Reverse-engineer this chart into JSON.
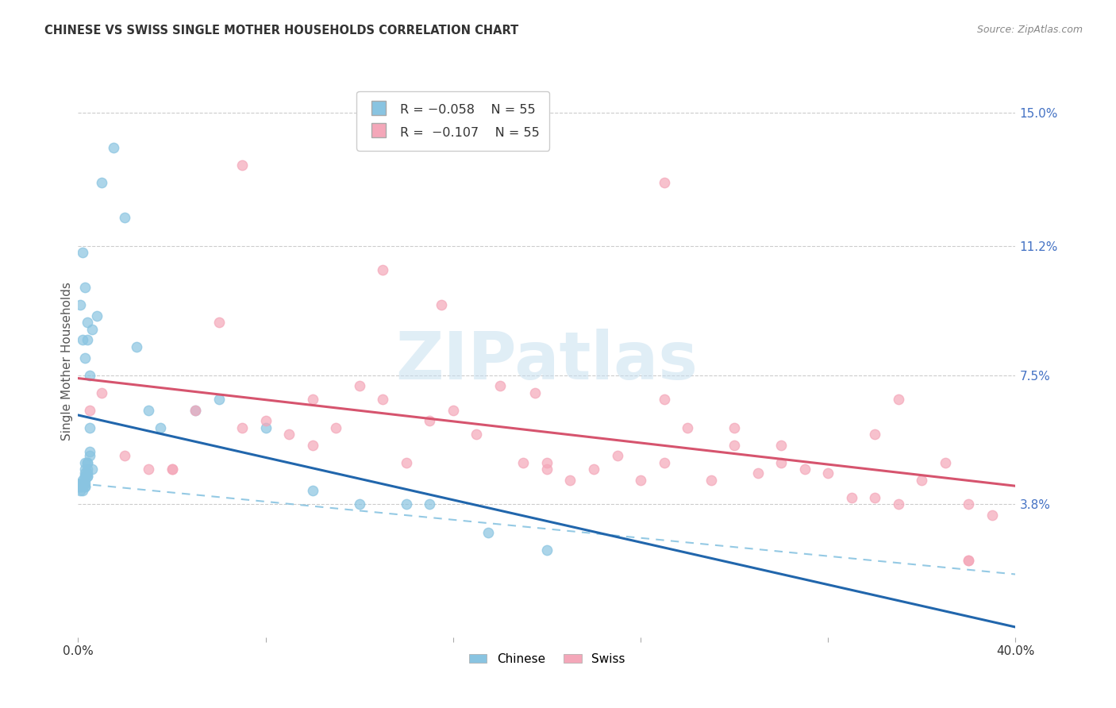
{
  "title": "CHINESE VS SWISS SINGLE MOTHER HOUSEHOLDS CORRELATION CHART",
  "source": "Source: ZipAtlas.com",
  "ylabel": "Single Mother Households",
  "color_chinese": "#89c4e1",
  "color_swiss": "#f4a7b9",
  "color_chinese_line": "#2166ac",
  "color_swiss_line": "#d6546e",
  "color_dashed": "#89c4e1",
  "ytick_vals": [
    0.038,
    0.075,
    0.112,
    0.15
  ],
  "ytick_labels": [
    "3.8%",
    "7.5%",
    "11.2%",
    "15.0%"
  ],
  "xmin": 0.0,
  "xmax": 0.4,
  "ymin": 0.0,
  "ymax": 0.158,
  "chinese_x": [
    0.003,
    0.005,
    0.002,
    0.004,
    0.006,
    0.003,
    0.002,
    0.001,
    0.004,
    0.003,
    0.005,
    0.004,
    0.003,
    0.002,
    0.001,
    0.004,
    0.003,
    0.002,
    0.005,
    0.003,
    0.004,
    0.003,
    0.002,
    0.001,
    0.003,
    0.004,
    0.002,
    0.003,
    0.001,
    0.002,
    0.005,
    0.003,
    0.002,
    0.004,
    0.001,
    0.003,
    0.002,
    0.004,
    0.006,
    0.008,
    0.01,
    0.015,
    0.02,
    0.025,
    0.03,
    0.035,
    0.05,
    0.06,
    0.08,
    0.1,
    0.12,
    0.14,
    0.15,
    0.175,
    0.2
  ],
  "chinese_y": [
    0.05,
    0.06,
    0.045,
    0.047,
    0.048,
    0.043,
    0.042,
    0.044,
    0.046,
    0.043,
    0.052,
    0.05,
    0.048,
    0.044,
    0.042,
    0.046,
    0.044,
    0.043,
    0.053,
    0.045,
    0.05,
    0.047,
    0.044,
    0.043,
    0.046,
    0.048,
    0.044,
    0.046,
    0.043,
    0.044,
    0.075,
    0.08,
    0.085,
    0.09,
    0.095,
    0.1,
    0.11,
    0.085,
    0.088,
    0.092,
    0.13,
    0.14,
    0.12,
    0.083,
    0.065,
    0.06,
    0.065,
    0.068,
    0.06,
    0.042,
    0.038,
    0.038,
    0.038,
    0.03,
    0.025
  ],
  "swiss_x": [
    0.005,
    0.01,
    0.02,
    0.03,
    0.04,
    0.05,
    0.06,
    0.07,
    0.08,
    0.09,
    0.1,
    0.11,
    0.12,
    0.13,
    0.14,
    0.15,
    0.16,
    0.17,
    0.18,
    0.19,
    0.2,
    0.21,
    0.22,
    0.23,
    0.24,
    0.25,
    0.26,
    0.27,
    0.28,
    0.29,
    0.3,
    0.31,
    0.32,
    0.33,
    0.34,
    0.35,
    0.36,
    0.37,
    0.38,
    0.39,
    0.13,
    0.155,
    0.195,
    0.25,
    0.3,
    0.34,
    0.38,
    0.35,
    0.2,
    0.28,
    0.07,
    0.04,
    0.38,
    0.25,
    0.1
  ],
  "swiss_y": [
    0.065,
    0.07,
    0.052,
    0.048,
    0.048,
    0.065,
    0.09,
    0.06,
    0.062,
    0.058,
    0.055,
    0.06,
    0.072,
    0.068,
    0.05,
    0.062,
    0.065,
    0.058,
    0.072,
    0.05,
    0.048,
    0.045,
    0.048,
    0.052,
    0.045,
    0.05,
    0.06,
    0.045,
    0.055,
    0.047,
    0.05,
    0.048,
    0.047,
    0.04,
    0.04,
    0.068,
    0.045,
    0.05,
    0.038,
    0.035,
    0.105,
    0.095,
    0.07,
    0.068,
    0.055,
    0.058,
    0.022,
    0.038,
    0.05,
    0.06,
    0.135,
    0.048,
    0.022,
    0.13,
    0.068
  ],
  "watermark_text": "ZIPatlas",
  "watermark_color": "#c8e0f0",
  "legend1_label": "R = -0.058   N = 55",
  "legend2_label": "R =  -0.107   N = 55",
  "bottom_legend1": "Chinese",
  "bottom_legend2": "Swiss"
}
